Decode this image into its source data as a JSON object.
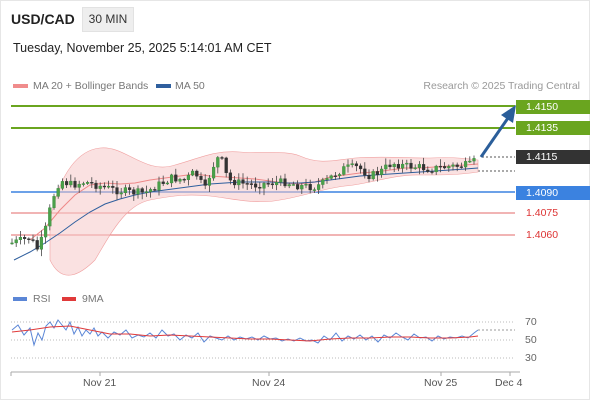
{
  "header": {
    "symbol": "USD/CAD",
    "timeframe": "30 MIN",
    "datetime": "Tuesday, November 25, 2025 5:14:01 AM CET"
  },
  "legend": {
    "bb_label": "MA 20 + Bollinger Bands",
    "ma50_label": "MA 50",
    "credit": "Research © 2025 Trading Central"
  },
  "colors": {
    "bb": "#f08c8c",
    "ma50": "#2f5f9e",
    "target": "#6aa51f",
    "pivot": "#3b82e0",
    "support": "#e36a6a",
    "current": "#333333",
    "arrow": "#2b5e9a",
    "rsi": "#5b86d6",
    "rsi_ma": "#e03a3a"
  },
  "chart_data": {
    "type": "candlestick",
    "y_range": [
      1.4048,
      1.4158
    ],
    "x_labels": [
      "Nov 21",
      "Nov 24",
      "Nov 25",
      "Dec 4"
    ],
    "levels": [
      {
        "value": "1.4150",
        "kind": "target"
      },
      {
        "value": "1.4135",
        "kind": "target"
      },
      {
        "value": "1.4115",
        "kind": "current"
      },
      {
        "value": "1.4090",
        "kind": "pivot"
      },
      {
        "value": "1.4075",
        "kind": "support"
      },
      {
        "value": "1.4060",
        "kind": "support"
      }
    ],
    "indicator": {
      "name": "RSI",
      "ma_name": "9MA",
      "levels": [
        "70",
        "50",
        "30"
      ]
    }
  }
}
